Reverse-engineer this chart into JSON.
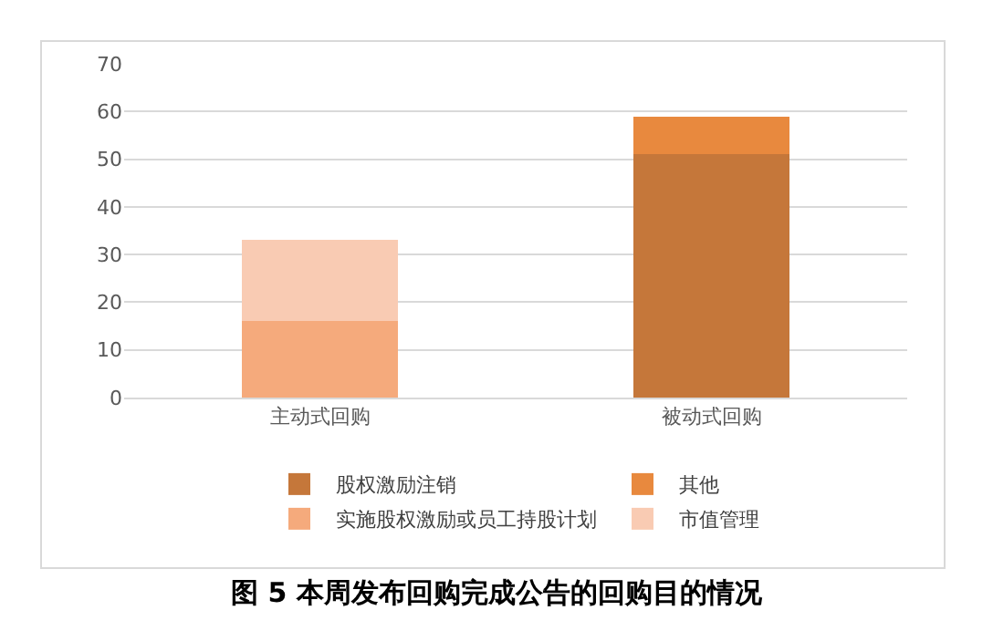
{
  "chart_data": {
    "type": "bar",
    "title": "图 5 本周发布回购完成公告的回购目的情况",
    "categories": [
      "主动式回购",
      "被动式回购"
    ],
    "stacked": true,
    "series": [
      {
        "name": "股权激励注销",
        "color": "#c5773a",
        "values": [
          0,
          51
        ]
      },
      {
        "name": "其他",
        "color": "#e8893e",
        "values": [
          0,
          8
        ]
      },
      {
        "name": "实施股权激励或员工持股计划",
        "color": "#f5aa7c",
        "values": [
          16,
          0
        ]
      },
      {
        "name": "市值管理",
        "color": "#f9cbb3",
        "values": [
          17,
          0
        ]
      }
    ],
    "ylim": [
      0,
      70
    ],
    "yticks": [
      0,
      10,
      20,
      30,
      40,
      50,
      60,
      70
    ],
    "grid": "y",
    "legend": "bottom"
  }
}
